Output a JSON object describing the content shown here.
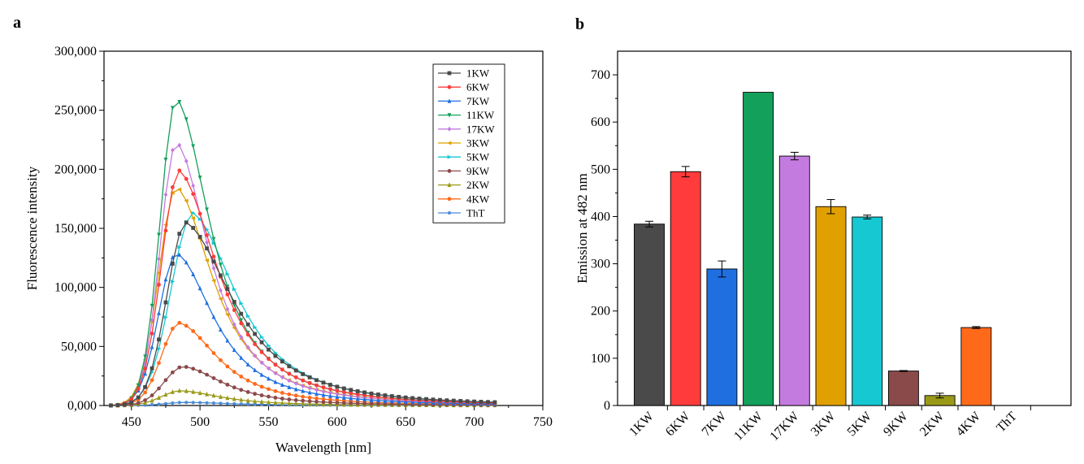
{
  "chart_data": [
    {
      "panel": "a",
      "type": "line",
      "xlabel": "Wavelength [nm]",
      "ylabel": "Fluorescence intensity",
      "xlim": [
        430,
        750
      ],
      "ylim": [
        0,
        300000
      ],
      "xticks": [
        450,
        500,
        550,
        600,
        650,
        700,
        750
      ],
      "yticks": [
        "0,000",
        "50,000",
        "100,000",
        "150,000",
        "200,000",
        "250,000",
        "300,000"
      ],
      "legend_position": "top-right",
      "x_range": [
        435,
        718
      ],
      "x_step": 5,
      "series": [
        {
          "name": "1KW",
          "color": "#4a4a4a",
          "marker": "square",
          "peak_x": 490,
          "peak_y": 155000,
          "sigma_left": 14,
          "tail_decay": 60
        },
        {
          "name": "6KW",
          "color": "#ff3b3b",
          "marker": "circle",
          "peak_x": 485,
          "peak_y": 199000,
          "sigma_left": 13,
          "tail_decay": 48
        },
        {
          "name": "7KW",
          "color": "#1f6fe0",
          "marker": "triangle-up",
          "peak_x": 483,
          "peak_y": 129000,
          "sigma_left": 13,
          "tail_decay": 46
        },
        {
          "name": "11KW",
          "color": "#12a05a",
          "marker": "triangle-down",
          "peak_x": 483,
          "peak_y": 260000,
          "sigma_left": 12,
          "tail_decay": 42
        },
        {
          "name": "17KW",
          "color": "#c47be0",
          "marker": "diamond",
          "peak_x": 483,
          "peak_y": 223000,
          "sigma_left": 12,
          "tail_decay": 40
        },
        {
          "name": "3KW",
          "color": "#e0a000",
          "marker": "triangle-left",
          "peak_x": 483,
          "peak_y": 185000,
          "sigma_left": 13,
          "tail_decay": 45
        },
        {
          "name": "5KW",
          "color": "#16c8d2",
          "marker": "triangle-right",
          "peak_x": 495,
          "peak_y": 163000,
          "sigma_left": 16,
          "tail_decay": 55
        },
        {
          "name": "9KW",
          "color": "#8b4a4a",
          "marker": "hexagon",
          "peak_x": 488,
          "peak_y": 33000,
          "sigma_left": 14,
          "tail_decay": 50
        },
        {
          "name": "2KW",
          "color": "#9a9a18",
          "marker": "star",
          "peak_x": 486,
          "peak_y": 12500,
          "sigma_left": 14,
          "tail_decay": 50
        },
        {
          "name": "4KW",
          "color": "#ff6a1a",
          "marker": "pentagon",
          "peak_x": 485,
          "peak_y": 70000,
          "sigma_left": 13,
          "tail_decay": 48
        },
        {
          "name": "ThT",
          "color": "#4a8ad4",
          "marker": "x",
          "peak_x": 490,
          "peak_y": 2600,
          "sigma_left": 15,
          "tail_decay": 60
        }
      ]
    },
    {
      "panel": "b",
      "type": "bar",
      "xlabel": "",
      "ylabel": "Emission at 482 nm",
      "ylim": [
        0,
        750
      ],
      "yticks": [
        0,
        100,
        200,
        300,
        400,
        500,
        600,
        700
      ],
      "categories": [
        "1KW",
        "6KW",
        "7KW",
        "11KW",
        "17KW",
        "3KW",
        "5KW",
        "9KW",
        "2KW",
        "4KW",
        "ThT"
      ],
      "values": [
        384,
        495,
        289,
        663,
        528,
        421,
        399,
        73,
        21,
        165,
        0
      ],
      "errors": [
        6,
        11,
        17,
        0,
        8,
        15,
        4,
        1,
        5,
        2,
        0
      ],
      "colors": [
        "#4a4a4a",
        "#ff3b3b",
        "#1f6fe0",
        "#12a05a",
        "#c47be0",
        "#e0a000",
        "#16c8d2",
        "#8b4a4a",
        "#9a9a18",
        "#ff6a1a",
        "#4a8ad4"
      ]
    }
  ],
  "labels": {
    "panel_a": "a",
    "panel_b": "b"
  }
}
